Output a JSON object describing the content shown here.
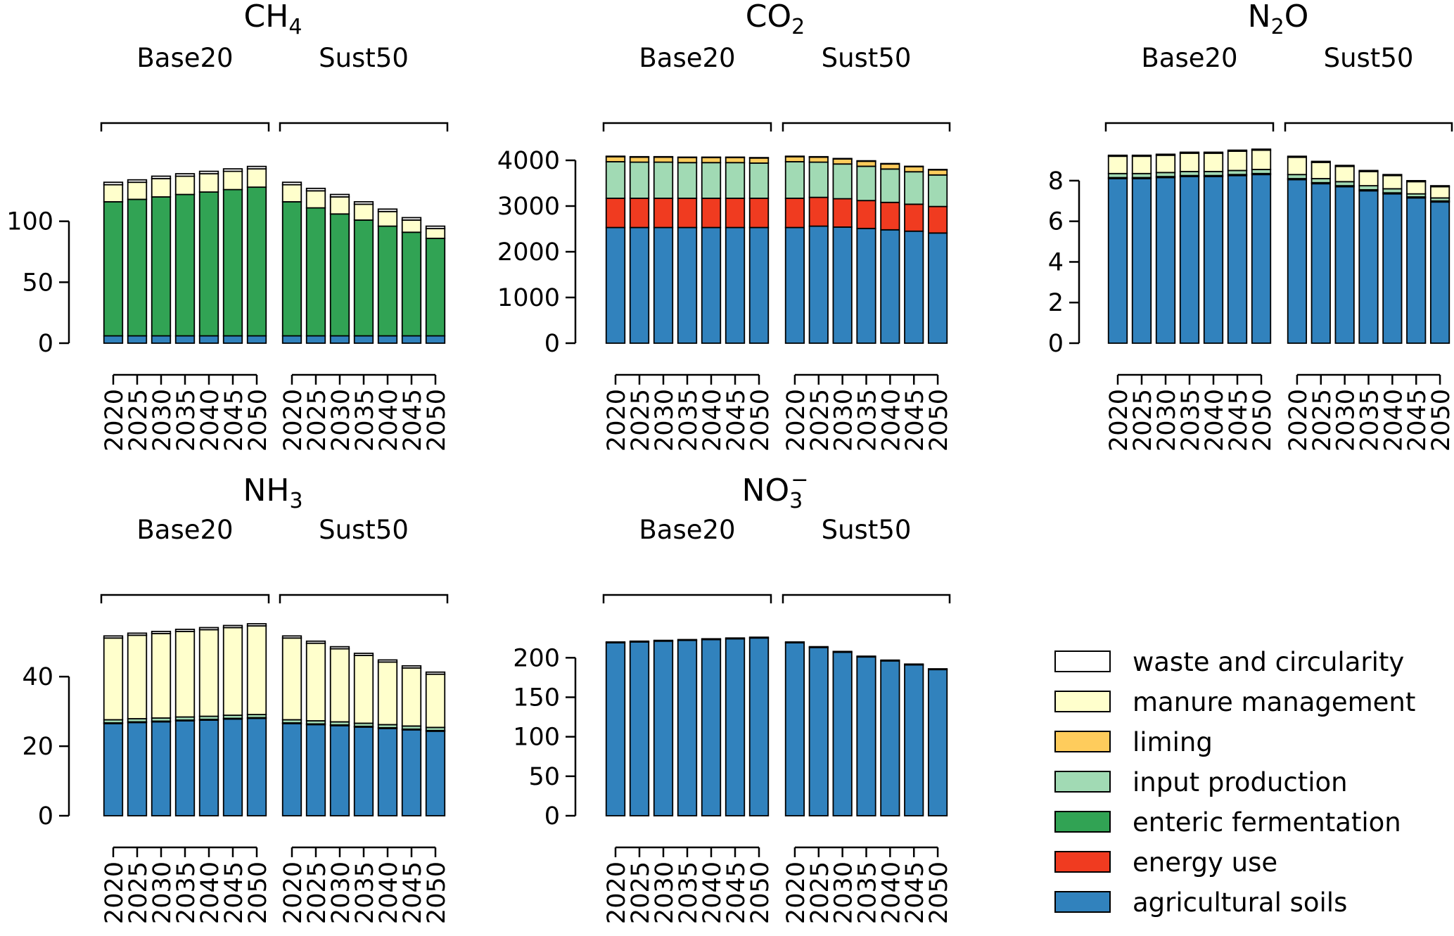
{
  "colors": {
    "waste and circularity": "#ffffff",
    "manure management": "#ffffcc",
    "liming": "#fecc5c",
    "input production": "#a1dab4",
    "enteric fermentation": "#31a354",
    "energy use": "#f03b20",
    "agricultural soils": "#3182bd"
  },
  "legend": {
    "items": [
      "waste and circularity",
      "manure management",
      "liming",
      "input production",
      "enteric fermentation",
      "energy use",
      "agricultural soils"
    ]
  },
  "chart_data": [
    {
      "type": "bar",
      "stacked": true,
      "title": "CH",
      "title_sub": "4",
      "title_sup": "",
      "groups": [
        "Base20",
        "Sust50"
      ],
      "categories": [
        "2020",
        "2025",
        "2030",
        "2035",
        "2040",
        "2045",
        "2050"
      ],
      "ylim": [
        0,
        150
      ],
      "yticks": [
        0,
        50,
        100
      ],
      "series": [
        {
          "name": "agricultural soils",
          "values": {
            "Base20": [
              6,
              6,
              6,
              6,
              6,
              6,
              6
            ],
            "Sust50": [
              6,
              6,
              6,
              6,
              6,
              6,
              6
            ]
          }
        },
        {
          "name": "enteric fermentation",
          "values": {
            "Base20": [
              110,
              112,
              114,
              116,
              118,
              120,
              122
            ],
            "Sust50": [
              110,
              105,
              100,
              95,
              90,
              85,
              80
            ]
          }
        },
        {
          "name": "manure management",
          "values": {
            "Base20": [
              14,
              14,
              15,
              15,
              15,
              15,
              15
            ],
            "Sust50": [
              14,
              14,
              14,
              13,
              12,
              10,
              8
            ]
          }
        },
        {
          "name": "waste and circularity",
          "values": {
            "Base20": [
              2,
              2,
              2,
              2,
              2,
              2,
              2
            ],
            "Sust50": [
              2,
              2,
              2,
              2,
              2,
              2,
              2
            ]
          }
        }
      ]
    },
    {
      "type": "bar",
      "stacked": true,
      "title": "CO",
      "title_sub": "2",
      "title_sup": "",
      "groups": [
        "Base20",
        "Sust50"
      ],
      "categories": [
        "2020",
        "2025",
        "2030",
        "2035",
        "2040",
        "2045",
        "2050"
      ],
      "ylim": [
        0,
        4000
      ],
      "yticks": [
        0,
        1000,
        2000,
        3000,
        4000
      ],
      "series": [
        {
          "name": "agricultural soils",
          "values": {
            "Base20": [
              2530,
              2530,
              2530,
              2530,
              2530,
              2530,
              2530
            ],
            "Sust50": [
              2530,
              2560,
              2540,
              2510,
              2480,
              2450,
              2410
            ]
          }
        },
        {
          "name": "energy use",
          "values": {
            "Base20": [
              640,
              640,
              640,
              640,
              640,
              640,
              640
            ],
            "Sust50": [
              640,
              630,
              620,
              610,
              600,
              590,
              580
            ]
          }
        },
        {
          "name": "input production",
          "values": {
            "Base20": [
              800,
              790,
              790,
              780,
              780,
              780,
              770
            ],
            "Sust50": [
              800,
              770,
              760,
              750,
              730,
              710,
              690
            ]
          }
        },
        {
          "name": "liming",
          "values": {
            "Base20": [
              110,
              110,
              110,
              110,
              110,
              110,
              110
            ],
            "Sust50": [
              110,
              110,
              110,
              110,
              110,
              110,
              110
            ]
          }
        },
        {
          "name": "waste and circularity",
          "values": {
            "Base20": [
              10,
              10,
              10,
              10,
              10,
              10,
              10
            ],
            "Sust50": [
              10,
              10,
              10,
              10,
              10,
              10,
              10
            ]
          }
        }
      ]
    },
    {
      "type": "bar",
      "stacked": true,
      "title": "N",
      "title_sub": "2",
      "title_after": "O",
      "title_sup": "",
      "groups": [
        "Base20",
        "Sust50"
      ],
      "categories": [
        "2020",
        "2025",
        "2030",
        "2035",
        "2040",
        "2045",
        "2050"
      ],
      "ylim": [
        0,
        9
      ],
      "yticks": [
        0,
        2,
        4,
        6,
        8
      ],
      "series": [
        {
          "name": "agricultural soils",
          "values": {
            "Base20": [
              8.1,
              8.1,
              8.15,
              8.2,
              8.2,
              8.25,
              8.3
            ],
            "Sust50": [
              8.05,
              7.85,
              7.7,
              7.5,
              7.35,
              7.15,
              6.95
            ]
          }
        },
        {
          "name": "enteric fermentation",
          "values": {
            "Base20": [
              0.05,
              0.05,
              0.05,
              0.05,
              0.05,
              0.05,
              0.05
            ],
            "Sust50": [
              0.05,
              0.05,
              0.05,
              0.05,
              0.05,
              0.05,
              0.05
            ]
          }
        },
        {
          "name": "input production",
          "values": {
            "Base20": [
              0.2,
              0.2,
              0.2,
              0.2,
              0.2,
              0.2,
              0.2
            ],
            "Sust50": [
              0.2,
              0.2,
              0.2,
              0.2,
              0.2,
              0.15,
              0.15
            ]
          }
        },
        {
          "name": "manure management",
          "values": {
            "Base20": [
              0.85,
              0.85,
              0.85,
              0.9,
              0.9,
              0.95,
              0.95
            ],
            "Sust50": [
              0.85,
              0.8,
              0.75,
              0.7,
              0.65,
              0.6,
              0.55
            ]
          }
        },
        {
          "name": "waste and circularity",
          "values": {
            "Base20": [
              0.05,
              0.05,
              0.05,
              0.05,
              0.05,
              0.05,
              0.05
            ],
            "Sust50": [
              0.05,
              0.05,
              0.05,
              0.05,
              0.05,
              0.05,
              0.05
            ]
          }
        }
      ]
    },
    {
      "type": "bar",
      "stacked": true,
      "title": "NH",
      "title_sub": "3",
      "title_sup": "",
      "groups": [
        "Base20",
        "Sust50"
      ],
      "categories": [
        "2020",
        "2025",
        "2030",
        "2035",
        "2040",
        "2045",
        "2050"
      ],
      "ylim": [
        0,
        55
      ],
      "yticks": [
        0,
        20,
        40
      ],
      "series": [
        {
          "name": "agricultural soils",
          "values": {
            "Base20": [
              26.5,
              26.8,
              27.0,
              27.3,
              27.5,
              27.8,
              28.0
            ],
            "Sust50": [
              26.5,
              26.2,
              25.9,
              25.5,
              25.1,
              24.7,
              24.3
            ]
          }
        },
        {
          "name": "enteric fermentation",
          "values": {
            "Base20": [
              0.2,
              0.2,
              0.2,
              0.2,
              0.2,
              0.2,
              0.2
            ],
            "Sust50": [
              0.2,
              0.2,
              0.2,
              0.2,
              0.2,
              0.2,
              0.2
            ]
          }
        },
        {
          "name": "input production",
          "values": {
            "Base20": [
              0.9,
              0.9,
              0.9,
              0.9,
              0.9,
              0.9,
              0.9
            ],
            "Sust50": [
              0.9,
              0.9,
              0.9,
              0.9,
              0.9,
              0.9,
              0.9
            ]
          }
        },
        {
          "name": "manure management",
          "values": {
            "Base20": [
              23.5,
              24.0,
              24.3,
              24.6,
              24.9,
              25.2,
              25.5
            ],
            "Sust50": [
              23.5,
              22.3,
              21.0,
              19.5,
              18.0,
              16.7,
              15.3
            ]
          }
        },
        {
          "name": "waste and circularity",
          "values": {
            "Base20": [
              0.6,
              0.6,
              0.6,
              0.6,
              0.6,
              0.6,
              0.6
            ],
            "Sust50": [
              0.6,
              0.6,
              0.6,
              0.6,
              0.6,
              0.6,
              0.6
            ]
          }
        }
      ]
    },
    {
      "type": "bar",
      "stacked": true,
      "title": "NO",
      "title_sub": "3",
      "title_sup": "−",
      "groups": [
        "Base20",
        "Sust50"
      ],
      "categories": [
        "2020",
        "2025",
        "2030",
        "2035",
        "2040",
        "2045",
        "2050"
      ],
      "ylim": [
        0,
        235
      ],
      "yticks": [
        0,
        50,
        100,
        150,
        200
      ],
      "series": [
        {
          "name": "agricultural soils",
          "values": {
            "Base20": [
              219,
              220,
              221,
              222,
              223,
              224,
              225
            ],
            "Sust50": [
              219,
              213,
              207,
              201,
              196,
              191,
              185
            ]
          }
        },
        {
          "name": "waste and circularity",
          "values": {
            "Base20": [
              1,
              1,
              1,
              1,
              1,
              1,
              1
            ],
            "Sust50": [
              1,
              1,
              1,
              1,
              1,
              1,
              1
            ]
          }
        }
      ]
    }
  ]
}
